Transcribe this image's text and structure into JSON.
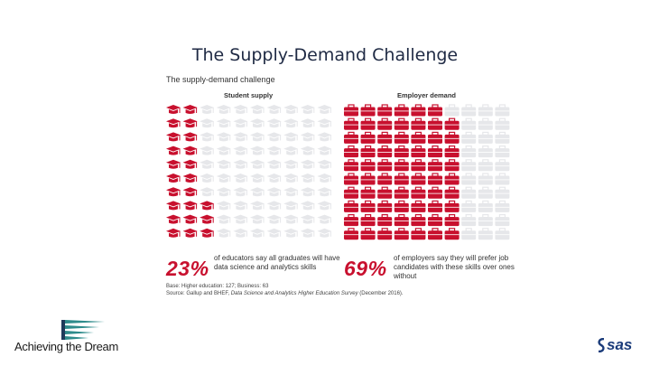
{
  "slide_title": "The Supply-Demand Challenge",
  "infographic": {
    "title": "The supply-demand challenge",
    "supply": {
      "heading": "Student supply",
      "percent": 23,
      "percent_label": "23%",
      "text": "of educators say all graduates will have data science and analytics skills",
      "icon": "graduation-cap-icon",
      "rows": 10,
      "cols": 10
    },
    "demand": {
      "heading": "Employer demand",
      "percent": 69,
      "percent_label": "69%",
      "text": "of employers say they will prefer job candidates with these skills over ones without",
      "icon": "briefcase-icon",
      "rows": 10,
      "cols": 10
    },
    "footnote_base": "Base: Higher education: 127; Business: 63",
    "footnote_source_prefix": "Source: Gallup and BHEF, ",
    "footnote_source_title": "Data Science and Analytics Higher Education Survey",
    "footnote_source_suffix": " (December 2016)."
  },
  "logos": {
    "left": "Achieving the Dream",
    "right": "sas"
  },
  "colors": {
    "accent": "#c8102e",
    "inactive": "#e6e7ea",
    "title": "#1f2a44"
  }
}
